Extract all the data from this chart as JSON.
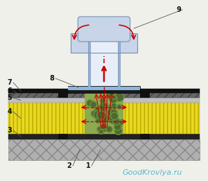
{
  "bg_color": "#f0f0eb",
  "watermark_text": "GoodKrovlya.ru",
  "watermark_color": "#4ab0c8",
  "watermark_fontsize": 8,
  "colors": {
    "concrete_fill": "#b0b0b0",
    "concrete_hatch": "#888888",
    "vapor_dark": "#222222",
    "insulation_yellow": "#e8d820",
    "insulation_hatch": "#b8a800",
    "screed_gray": "#c0c0c0",
    "waterproof1_fill": "#666666",
    "waterproof1_hatch": "#444444",
    "waterproof2_dark": "#111111",
    "clay_fill": "#8caa50",
    "clay_circle": "#6a8838",
    "flange_dark": "#1a1a1a",
    "blue_strip": "#8ab8e0",
    "tube_wall": "#9ab0cc",
    "tube_inside": "#e8eef8",
    "cap_fill": "#c8d4e8",
    "cap_edge": "#7090b8",
    "red_arrow": "#cc0000",
    "label_color": "#111111",
    "leader_color": "#555555",
    "black_block": "#111111"
  }
}
